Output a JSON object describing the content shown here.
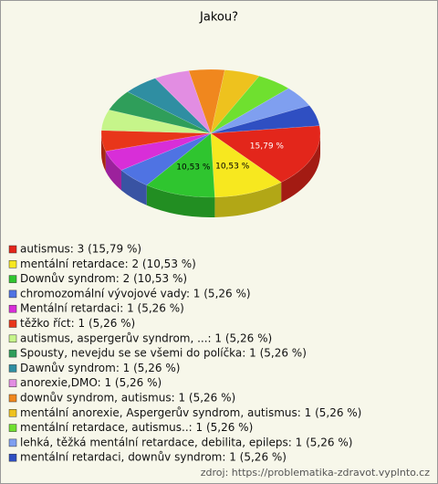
{
  "chart_data": {
    "type": "pie3d",
    "title": "Jakou?",
    "categories": [
      "autismus: 3 (15,79 %)",
      "mentální retardace: 2 (10,53 %)",
      "Downův syndrom: 2 (10,53 %)",
      "chromozomální vývojové vady: 1 (5,26 %)",
      "Mentální retardaci: 1 (5,26 %)",
      "těžko říct: 1 (5,26 %)",
      "autismus, aspergerův syndrom, ...: 1 (5,26 %)",
      "Spousty, nevejdu se se všemi do políčka: 1 (5,26 %)",
      "Dawnův syndrom: 1 (5,26 %)",
      "anorexie,DMO: 1 (5,26 %)",
      "downův syndrom, autismus: 1 (5,26 %)",
      "mentální anorexie, Aspergerův syndrom, autismus: 1 (5,26 %)",
      "mentální retardace, autismus..: 1 (5,26 %)",
      "lehká, těžká mentální retardace, debilita, epileps: 1 (5,26 %)",
      "mentální retardaci, downův syndrom: 1 (5,26 %)"
    ],
    "values": [
      15.79,
      10.53,
      10.53,
      5.26,
      5.26,
      5.26,
      5.26,
      5.26,
      5.26,
      5.26,
      5.26,
      5.26,
      5.26,
      5.26,
      5.26
    ],
    "value_labels": [
      "15,79 %",
      "10,53 %",
      "10,53 %",
      null,
      null,
      null,
      null,
      null,
      null,
      null,
      null,
      null,
      null,
      null,
      null
    ],
    "colors": [
      "#e3261b",
      "#f7e81f",
      "#2fc52f",
      "#4f73e3",
      "#d82ed8",
      "#e8361a",
      "#c6f58a",
      "#2f9e5a",
      "#2f8ea2",
      "#e28de2",
      "#f0871e",
      "#eec21e",
      "#6fe02f",
      "#7f9ff0",
      "#2f4fc2"
    ],
    "source": "zdroj: https://problematika-zdravot.vyplnto.cz"
  }
}
